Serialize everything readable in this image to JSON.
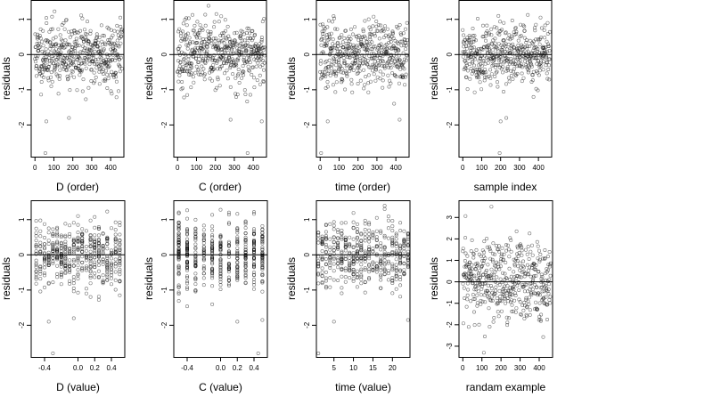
{
  "chart_data": [
    {
      "type": "scatter",
      "xlabel": "D (order)",
      "ylabel": "residuals",
      "xlim": [
        -20,
        470
      ],
      "ylim": [
        -2.9,
        1.55
      ],
      "xticks": [
        "0",
        "100",
        "200",
        "300",
        "400"
      ],
      "yticks": [
        "-2",
        "-1",
        "0",
        "1"
      ],
      "reference_line_y": 0,
      "distribution": {
        "kind": "order",
        "n": 460,
        "seed": 11,
        "xmin": 0,
        "xmax": 460,
        "sd": 0.45,
        "outliers": [
          [
            60,
            -1.9
          ],
          [
            180,
            -1.8
          ],
          [
            55,
            -2.8
          ]
        ]
      }
    },
    {
      "type": "scatter",
      "xlabel": "C (order)",
      "ylabel": "residuals",
      "xlim": [
        -20,
        470
      ],
      "ylim": [
        -2.9,
        1.55
      ],
      "xticks": [
        "0",
        "100",
        "200",
        "300",
        "400"
      ],
      "yticks": [
        "-2",
        "-1",
        "0",
        "1"
      ],
      "reference_line_y": 0,
      "distribution": {
        "kind": "order",
        "n": 460,
        "seed": 23,
        "xmin": 0,
        "xmax": 460,
        "sd": 0.45,
        "outliers": [
          [
            280,
            -1.85
          ],
          [
            445,
            -1.9
          ],
          [
            370,
            -2.8
          ]
        ]
      }
    },
    {
      "type": "scatter",
      "xlabel": "time (order)",
      "ylabel": "residuals",
      "xlim": [
        -20,
        470
      ],
      "ylim": [
        -2.9,
        1.55
      ],
      "xticks": [
        "0",
        "100",
        "200",
        "300",
        "400"
      ],
      "yticks": [
        "-2",
        "-1",
        "0",
        "1"
      ],
      "reference_line_y": 0,
      "distribution": {
        "kind": "order",
        "n": 460,
        "seed": 37,
        "xmin": 0,
        "xmax": 460,
        "sd": 0.45,
        "outliers": [
          [
            40,
            -1.9
          ],
          [
            420,
            -1.85
          ],
          [
            5,
            -2.8
          ]
        ]
      }
    },
    {
      "type": "scatter",
      "xlabel": "sample index",
      "ylabel": "residuals",
      "xlim": [
        -20,
        470
      ],
      "ylim": [
        -2.9,
        1.55
      ],
      "xticks": [
        "0",
        "100",
        "200",
        "300",
        "400"
      ],
      "yticks": [
        "-2",
        "-1",
        "0",
        "1"
      ],
      "reference_line_y": 0,
      "distribution": {
        "kind": "order",
        "n": 460,
        "seed": 41,
        "xmin": 0,
        "xmax": 460,
        "sd": 0.42,
        "outliers": [
          [
            200,
            -1.9
          ],
          [
            230,
            -1.8
          ],
          [
            195,
            -2.8
          ]
        ]
      }
    },
    {
      "type": "scatter",
      "xlabel": "D (value)",
      "ylabel": "residuals",
      "xlim": [
        -0.56,
        0.56
      ],
      "ylim": [
        -2.9,
        1.55
      ],
      "xticks": [
        "-0.4",
        "0.0",
        "0.2",
        "0.4"
      ],
      "xtick_values": [
        -0.4,
        0.0,
        0.2,
        0.4
      ],
      "yticks": [
        "-2",
        "-1",
        "0",
        "1"
      ],
      "reference_line_y": 0,
      "distribution": {
        "kind": "levels",
        "n": 460,
        "seed": 53,
        "levels": [
          -0.5,
          -0.45,
          -0.4,
          -0.35,
          -0.3,
          -0.25,
          -0.2,
          -0.15,
          -0.1,
          -0.05,
          0.0,
          0.05,
          0.1,
          0.15,
          0.2,
          0.25,
          0.3,
          0.35,
          0.4,
          0.45,
          0.5
        ],
        "sd": 0.45,
        "outliers": [
          [
            -0.35,
            -1.9
          ],
          [
            -0.05,
            -1.8
          ],
          [
            -0.3,
            -2.8
          ]
        ]
      }
    },
    {
      "type": "scatter",
      "xlabel": "C (value)",
      "ylabel": "residuals",
      "xlim": [
        -0.56,
        0.56
      ],
      "ylim": [
        -2.9,
        1.55
      ],
      "xticks": [
        "-0.4",
        "0.0",
        "0.2",
        "0.4"
      ],
      "xtick_values": [
        -0.4,
        0.0,
        0.2,
        0.4
      ],
      "yticks": [
        "-2",
        "-1",
        "0",
        "1"
      ],
      "reference_line_y": 0,
      "distribution": {
        "kind": "levels",
        "n": 460,
        "seed": 67,
        "levels": [
          -0.5,
          -0.4,
          -0.3,
          -0.2,
          -0.1,
          0.0,
          0.1,
          0.2,
          0.3,
          0.4,
          0.5
        ],
        "sd": 0.45,
        "outliers": [
          [
            0.2,
            -1.9
          ],
          [
            0.5,
            -1.85
          ],
          [
            0.45,
            -2.8
          ]
        ]
      }
    },
    {
      "type": "scatter",
      "xlabel": "time (value)",
      "ylabel": "residuals",
      "xlim": [
        0.5,
        24.5
      ],
      "ylim": [
        -2.9,
        1.55
      ],
      "xticks": [
        "5",
        "10",
        "15",
        "20"
      ],
      "xtick_values": [
        5,
        10,
        15,
        20
      ],
      "yticks": [
        "-2",
        "-1",
        "0",
        "1"
      ],
      "reference_line_y": 0,
      "distribution": {
        "kind": "levels",
        "n": 460,
        "seed": 79,
        "levels": [
          1,
          2,
          3,
          4,
          5,
          6,
          7,
          8,
          9,
          10,
          11,
          12,
          13,
          14,
          15,
          16,
          17,
          18,
          19,
          20,
          21,
          22,
          23,
          24
        ],
        "sd": 0.45,
        "outliers": [
          [
            5,
            -1.9
          ],
          [
            24,
            -1.85
          ],
          [
            1,
            -2.8
          ]
        ]
      }
    },
    {
      "type": "scatter",
      "xlabel": "randam example",
      "ylabel": "residuals",
      "xlim": [
        -20,
        470
      ],
      "ylim": [
        -3.5,
        3.8
      ],
      "xticks": [
        "0",
        "100",
        "200",
        "300",
        "400"
      ],
      "yticks": [
        "-3",
        "-2",
        "-1",
        "0",
        "1",
        "2",
        "3"
      ],
      "reference_line_y": 0,
      "distribution": {
        "kind": "order",
        "n": 460,
        "seed": 97,
        "xmin": 0,
        "xmax": 460,
        "sd": 1.0,
        "outliers": [
          [
            150,
            3.5
          ],
          [
            110,
            -3.3
          ]
        ]
      }
    }
  ]
}
